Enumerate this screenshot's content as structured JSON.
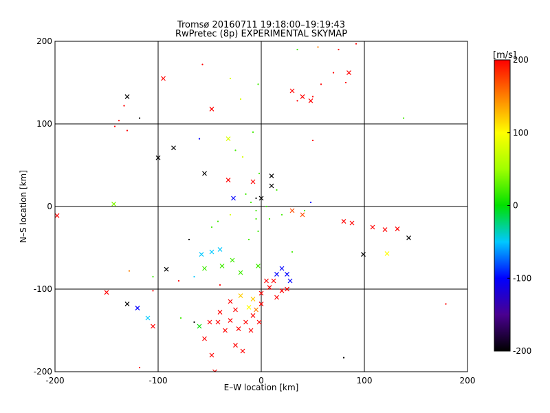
{
  "chart_data": {
    "type": "scatter",
    "title": "Tromsø 20160711 19:18:00–19:19:43",
    "subtitle": "RwPretec (8p) EXPERIMENTAL SKYMAP",
    "xlabel": "E–W location [km]",
    "ylabel": "N–S location [km]",
    "xlim": [
      -200,
      200
    ],
    "ylim": [
      -200,
      200
    ],
    "xticks": [
      -200,
      -100,
      0,
      100,
      200
    ],
    "yticks": [
      -200,
      -100,
      0,
      100,
      200
    ],
    "grid": true,
    "colorbar": {
      "label": "[m/s]",
      "range": [
        -200,
        200
      ],
      "ticks": [
        200,
        100,
        0,
        -100,
        -200
      ]
    },
    "series": [
      {
        "marker": "cross",
        "points": [
          [
            -130,
            133,
            -200
          ],
          [
            -95,
            155,
            200
          ],
          [
            -48,
            118,
            200
          ],
          [
            -85,
            71,
            -200
          ],
          [
            -100,
            59,
            -200
          ],
          [
            -55,
            40,
            -200
          ],
          [
            -32,
            82,
            80
          ],
          [
            -32,
            32,
            200
          ],
          [
            -8,
            30,
            200
          ],
          [
            0,
            10,
            -200
          ],
          [
            10,
            25,
            -200
          ],
          [
            10,
            37,
            -200
          ],
          [
            -27,
            10,
            -100
          ],
          [
            -143,
            3,
            40
          ],
          [
            85,
            162,
            200
          ],
          [
            -198,
            -11,
            200
          ],
          [
            30,
            -5,
            170
          ],
          [
            40,
            -10,
            170
          ],
          [
            80,
            -18,
            200
          ],
          [
            88,
            -20,
            200
          ],
          [
            108,
            -25,
            200
          ],
          [
            120,
            -28,
            200
          ],
          [
            132,
            -27,
            200
          ],
          [
            143,
            -38,
            -200
          ],
          [
            122,
            -57,
            100
          ],
          [
            99,
            -58,
            -200
          ],
          [
            -92,
            -76,
            -200
          ],
          [
            -58,
            -58,
            -50
          ],
          [
            -48,
            -55,
            -50
          ],
          [
            -40,
            -52,
            -50
          ],
          [
            -55,
            -75,
            20
          ],
          [
            -38,
            -72,
            20
          ],
          [
            -28,
            -65,
            20
          ],
          [
            -20,
            -80,
            20
          ],
          [
            -3,
            -72,
            20
          ],
          [
            20,
            -75,
            -100
          ],
          [
            25,
            -82,
            -100
          ],
          [
            15,
            -82,
            -100
          ],
          [
            28,
            -90,
            -100
          ],
          [
            -150,
            -104,
            200
          ],
          [
            -130,
            -118,
            -200
          ],
          [
            -120,
            -123,
            -100
          ],
          [
            -110,
            -135,
            -50
          ],
          [
            -105,
            -145,
            200
          ],
          [
            -60,
            -145,
            0
          ],
          [
            -55,
            -160,
            200
          ],
          [
            -50,
            -140,
            200
          ],
          [
            -42,
            -140,
            200
          ],
          [
            -30,
            -138,
            200
          ],
          [
            -22,
            -148,
            200
          ],
          [
            -15,
            -140,
            200
          ],
          [
            -8,
            -132,
            200
          ],
          [
            -20,
            -108,
            120
          ],
          [
            -8,
            -112,
            120
          ],
          [
            -12,
            -122,
            100
          ],
          [
            0,
            -105,
            200
          ],
          [
            8,
            -98,
            200
          ],
          [
            15,
            -110,
            200
          ],
          [
            20,
            -102,
            200
          ],
          [
            -25,
            -125,
            200
          ],
          [
            -35,
            -150,
            200
          ],
          [
            -25,
            -168,
            200
          ],
          [
            -18,
            -175,
            200
          ],
          [
            -48,
            -180,
            200
          ],
          [
            -45,
            -200,
            200
          ],
          [
            5,
            -90,
            200
          ],
          [
            12,
            -90,
            200
          ],
          [
            25,
            -100,
            200
          ],
          [
            -40,
            -128,
            200
          ],
          [
            -30,
            -115,
            200
          ],
          [
            -10,
            -150,
            200
          ],
          [
            -2,
            -140,
            200
          ],
          [
            -5,
            -125,
            150
          ],
          [
            0,
            -118,
            200
          ],
          [
            40,
            133,
            200
          ],
          [
            48,
            128,
            200
          ],
          [
            30,
            140,
            200
          ]
        ]
      },
      {
        "marker": "dot",
        "points": [
          [
            -57,
            172,
            200
          ],
          [
            -142,
            97,
            200
          ],
          [
            -138,
            104,
            200
          ],
          [
            -130,
            92,
            200
          ],
          [
            -118,
            107,
            -200
          ],
          [
            -133,
            122,
            200
          ],
          [
            50,
            133,
            200
          ],
          [
            35,
            128,
            200
          ],
          [
            58,
            148,
            200
          ],
          [
            70,
            162,
            200
          ],
          [
            55,
            193,
            150
          ],
          [
            75,
            190,
            200
          ],
          [
            92,
            197,
            200
          ],
          [
            82,
            150,
            200
          ],
          [
            35,
            190,
            20
          ],
          [
            -3,
            148,
            20
          ],
          [
            -20,
            130,
            80
          ],
          [
            50,
            80,
            200
          ],
          [
            -8,
            90,
            20
          ],
          [
            -18,
            60,
            80
          ],
          [
            -2,
            40,
            20
          ],
          [
            15,
            20,
            20
          ],
          [
            -10,
            5,
            20
          ],
          [
            -5,
            -5,
            20
          ],
          [
            5,
            0,
            20
          ],
          [
            -15,
            15,
            20
          ],
          [
            20,
            -10,
            20
          ],
          [
            -5,
            -15,
            20
          ],
          [
            8,
            -15,
            20
          ],
          [
            -30,
            -10,
            80
          ],
          [
            -48,
            -25,
            20
          ],
          [
            -42,
            -18,
            20
          ],
          [
            -70,
            -40,
            -200
          ],
          [
            -65,
            -85,
            -50
          ],
          [
            -80,
            -90,
            200
          ],
          [
            -105,
            -102,
            200
          ],
          [
            -105,
            -85,
            20
          ],
          [
            -128,
            -78,
            150
          ],
          [
            -40,
            -95,
            200
          ],
          [
            -3,
            -30,
            20
          ],
          [
            -12,
            -40,
            20
          ],
          [
            48,
            5,
            -100
          ],
          [
            42,
            -5,
            20
          ],
          [
            30,
            -55,
            20
          ],
          [
            80,
            -183,
            -200
          ],
          [
            -118,
            -195,
            200
          ],
          [
            -65,
            -140,
            -200
          ],
          [
            -78,
            -135,
            20
          ],
          [
            179,
            -118,
            200
          ],
          [
            138,
            107,
            20
          ],
          [
            -30,
            155,
            80
          ],
          [
            -25,
            68,
            20
          ],
          [
            -60,
            82,
            -100
          ],
          [
            -5,
            10,
            -200
          ]
        ]
      }
    ]
  }
}
